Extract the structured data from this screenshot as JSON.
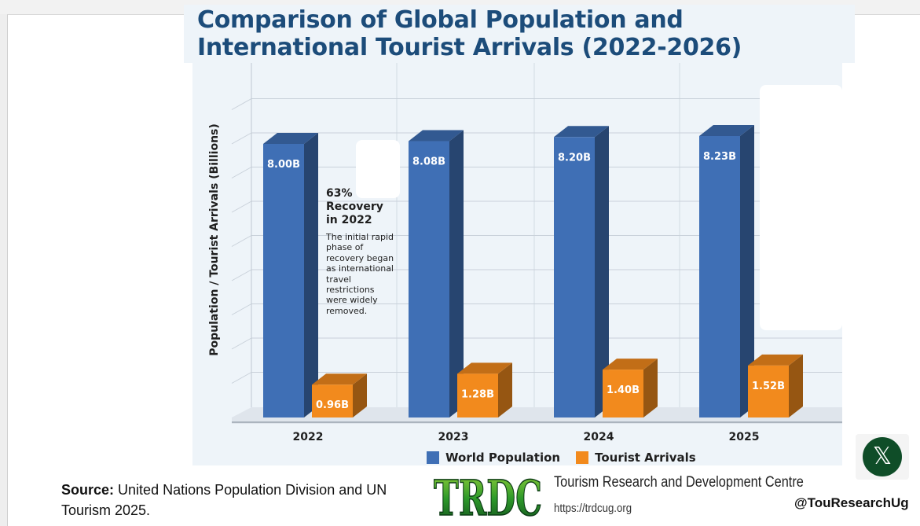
{
  "chart_data": {
    "type": "bar",
    "title": "Comparison of Global Population and International Tourist Arrivals (2022-2026)",
    "ylabel": "Population / Tourist Arrivals (Billions)",
    "categories": [
      "2022",
      "2023",
      "2024",
      "2025"
    ],
    "series": [
      {
        "name": "World Population",
        "values": [
          8.0,
          8.08,
          8.2,
          8.23
        ],
        "labels": [
          "8.00B",
          "8.08B",
          "8.20B",
          "8.23B"
        ],
        "color": "#3f6fb5"
      },
      {
        "name": "Tourist Arrivals",
        "values": [
          0.96,
          1.28,
          1.4,
          1.52
        ],
        "labels": [
          "0.96B",
          "1.28B",
          "1.40B",
          "1.52B"
        ],
        "color": "#f28a1d"
      }
    ],
    "ylim": [
      0,
      9
    ],
    "grid": true,
    "legend_position": "bottom",
    "annotation": {
      "heading_line1": "63%",
      "heading_line2": "Recovery",
      "heading_line3": "in 2022",
      "body": [
        "The initial rapid",
        "phase of",
        "recovery began",
        "as international",
        "travel",
        "restrictions",
        "were widely",
        "removed."
      ]
    }
  },
  "source": {
    "label": "Source:",
    "text": "United Nations Population Division and UN Tourism 2025."
  },
  "org": {
    "logo_text": "TRDC",
    "name": "Tourism Research and Development Centre",
    "url": "https://trdcug.org"
  },
  "social": {
    "icon": "x-icon",
    "glyph": "𝕏",
    "handle": "@TouResearchUg"
  }
}
